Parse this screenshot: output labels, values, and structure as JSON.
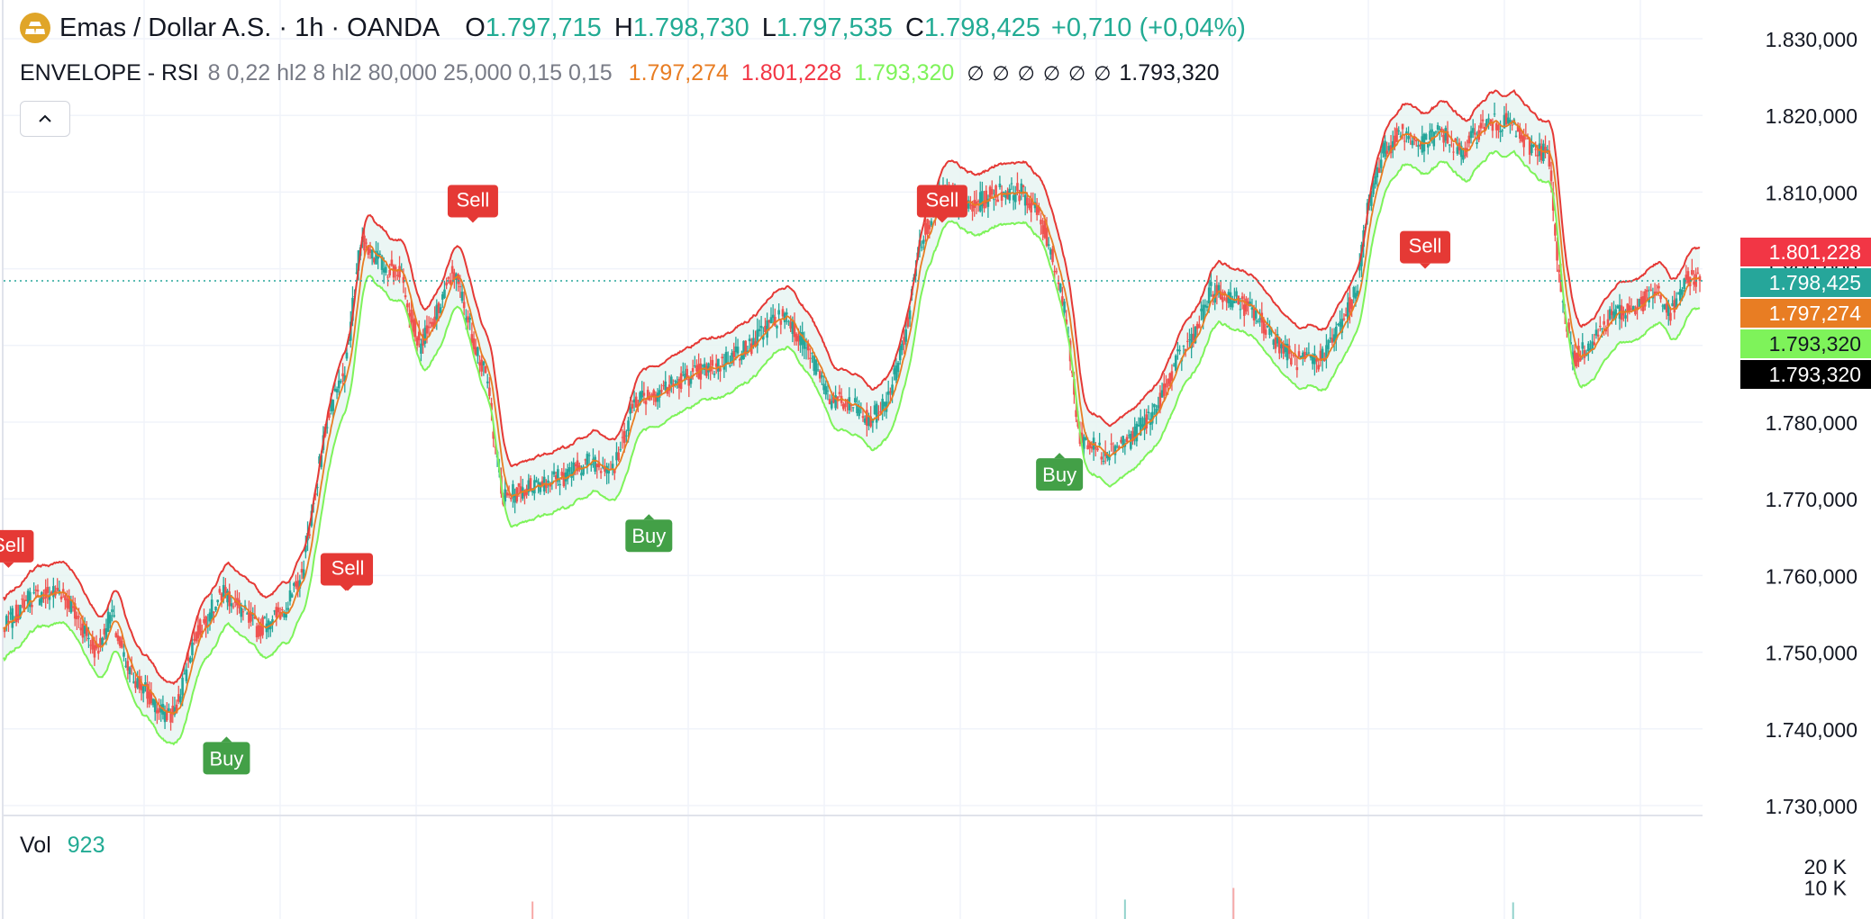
{
  "header": {
    "symbol_title": "Emas / Dollar A.S. · 1h · OANDA",
    "ohlc": [
      {
        "key": "O",
        "value": "1.797,715"
      },
      {
        "key": "H",
        "value": "1.798,730"
      },
      {
        "key": "L",
        "value": "1.797,535"
      },
      {
        "key": "C",
        "value": "1.798,425"
      }
    ],
    "change": "+0,710 (+0,04%)",
    "icon": "gold-bars-icon"
  },
  "indicator": {
    "name": "ENVELOPE - RSI",
    "params": "8 0,22 hl2 8 hl2 80,000 25,000 0,15 0,15",
    "values": [
      {
        "text": "1.797,274",
        "color": "#e87d23"
      },
      {
        "text": "1.801,228",
        "color": "#f23645"
      },
      {
        "text": "1.793,320",
        "color": "#7ef35a"
      }
    ],
    "null_values": [
      "∅",
      "∅",
      "∅",
      "∅",
      "∅",
      "∅"
    ],
    "last_value": "1.793,320"
  },
  "volume": {
    "label": "Vol",
    "value": "923",
    "axis_ticks": [
      "20 K",
      "10 K"
    ]
  },
  "colors": {
    "up": "#26a69a",
    "down": "#ef5350",
    "basis": "#e87d23",
    "upper": "#e53935",
    "lower": "#7ef35a",
    "fill": "#e6f4f1",
    "sell": "#e53935",
    "buy": "#43a047",
    "grid": "#f0f3fa",
    "axis_text": "#131722"
  },
  "chart_data": {
    "type": "line",
    "ylim": [
      1730000,
      1830000
    ],
    "y_ticks": [
      "1.830,000",
      "1.820,000",
      "1.810,000",
      "1.800,000",
      "1.790,000",
      "1.780,000",
      "1.770,000",
      "1.760,000",
      "1.750,000",
      "1.740,000",
      "1.730,000"
    ],
    "y_tick_values": [
      1830000,
      1820000,
      1810000,
      1800000,
      1790000,
      1780000,
      1770000,
      1760000,
      1750000,
      1740000,
      1730000
    ],
    "close_anchors": [
      [
        0,
        1753000
      ],
      [
        25,
        1757000
      ],
      [
        60,
        1758000
      ],
      [
        95,
        1750000
      ],
      [
        110,
        1755000
      ],
      [
        125,
        1748000
      ],
      [
        145,
        1745000
      ],
      [
        160,
        1742000
      ],
      [
        175,
        1742000
      ],
      [
        195,
        1752000
      ],
      [
        225,
        1758000
      ],
      [
        260,
        1753000
      ],
      [
        290,
        1756000
      ],
      [
        305,
        1760000
      ],
      [
        330,
        1780000
      ],
      [
        350,
        1787000
      ],
      [
        365,
        1804000
      ],
      [
        390,
        1800000
      ],
      [
        405,
        1800000
      ],
      [
        425,
        1790000
      ],
      [
        440,
        1793000
      ],
      [
        460,
        1800000
      ],
      [
        478,
        1792000
      ],
      [
        495,
        1785000
      ],
      [
        510,
        1770000
      ],
      [
        545,
        1772000
      ],
      [
        575,
        1773000
      ],
      [
        600,
        1775000
      ],
      [
        625,
        1774000
      ],
      [
        645,
        1783000
      ],
      [
        670,
        1784000
      ],
      [
        700,
        1786000
      ],
      [
        725,
        1787000
      ],
      [
        750,
        1789000
      ],
      [
        765,
        1790000
      ],
      [
        785,
        1793000
      ],
      [
        800,
        1794000
      ],
      [
        820,
        1790000
      ],
      [
        845,
        1783000
      ],
      [
        870,
        1782000
      ],
      [
        885,
        1780000
      ],
      [
        905,
        1783000
      ],
      [
        925,
        1793000
      ],
      [
        935,
        1803000
      ],
      [
        960,
        1810000
      ],
      [
        990,
        1808000
      ],
      [
        1015,
        1810000
      ],
      [
        1040,
        1810000
      ],
      [
        1055,
        1808000
      ],
      [
        1070,
        1803000
      ],
      [
        1085,
        1795000
      ],
      [
        1100,
        1778000
      ],
      [
        1125,
        1776000
      ],
      [
        1155,
        1778000
      ],
      [
        1180,
        1782000
      ],
      [
        1200,
        1788000
      ],
      [
        1220,
        1792000
      ],
      [
        1235,
        1797000
      ],
      [
        1260,
        1796000
      ],
      [
        1280,
        1794000
      ],
      [
        1300,
        1791000
      ],
      [
        1320,
        1788000
      ],
      [
        1345,
        1788000
      ],
      [
        1370,
        1793000
      ],
      [
        1385,
        1798000
      ],
      [
        1395,
        1808000
      ],
      [
        1410,
        1815000
      ],
      [
        1430,
        1818000
      ],
      [
        1450,
        1816000
      ],
      [
        1470,
        1818000
      ],
      [
        1490,
        1815000
      ],
      [
        1515,
        1819000
      ],
      [
        1540,
        1819000
      ],
      [
        1560,
        1816000
      ],
      [
        1580,
        1815000
      ],
      [
        1590,
        1800000
      ],
      [
        1605,
        1788000
      ],
      [
        1620,
        1790000
      ],
      [
        1645,
        1794000
      ],
      [
        1670,
        1795000
      ],
      [
        1690,
        1797000
      ],
      [
        1705,
        1794000
      ],
      [
        1715,
        1797000
      ],
      [
        1725,
        1799000
      ],
      [
        1735,
        1798425
      ]
    ],
    "current_price": 1798425,
    "price_labels": [
      {
        "text": "1.801,228",
        "value": 1801228,
        "color": "#f23645"
      },
      {
        "text": "1.798,425",
        "value": 1798425,
        "color": "#26a69a"
      },
      {
        "text": "1.797,274",
        "value": 1797274,
        "color": "#e87d23"
      },
      {
        "text": "1.793,320",
        "value": 1793320,
        "color": "#7ef35a"
      },
      {
        "text": "1.793,320",
        "value": 1793320,
        "color": "#000000"
      }
    ],
    "signals": [
      {
        "type": "Sell",
        "bar": 5,
        "price": 1761000
      },
      {
        "type": "Sell",
        "bar": 350,
        "price": 1758000
      },
      {
        "type": "Sell",
        "bar": 352,
        "price": 1758000
      },
      {
        "type": "Sell",
        "bar": 480,
        "price": 1806000
      },
      {
        "type": "Sell",
        "bar": 960,
        "price": 1806000
      },
      {
        "type": "Sell",
        "bar": 1454,
        "price": 1800000
      },
      {
        "type": "Buy",
        "bar": 228,
        "price": 1739000
      },
      {
        "type": "Buy",
        "bar": 660,
        "price": 1768000
      },
      {
        "type": "Buy",
        "bar": 1080,
        "price": 1776000
      }
    ],
    "signal_labels": [
      "Sell",
      "Sell",
      "Sell",
      "Sell",
      "Sell",
      "Sell",
      "Buy",
      "Buy",
      "Buy"
    ],
    "volume_ticks": [
      20000,
      10000
    ],
    "volume_spikes": [
      {
        "bar": 541,
        "value": 3600,
        "dir": "down"
      },
      {
        "bar": 1147,
        "value": 4500,
        "dir": "up"
      },
      {
        "bar": 1258,
        "value": 10000,
        "dir": "down"
      },
      {
        "bar": 1544,
        "value": 3200,
        "dir": "up"
      }
    ]
  }
}
